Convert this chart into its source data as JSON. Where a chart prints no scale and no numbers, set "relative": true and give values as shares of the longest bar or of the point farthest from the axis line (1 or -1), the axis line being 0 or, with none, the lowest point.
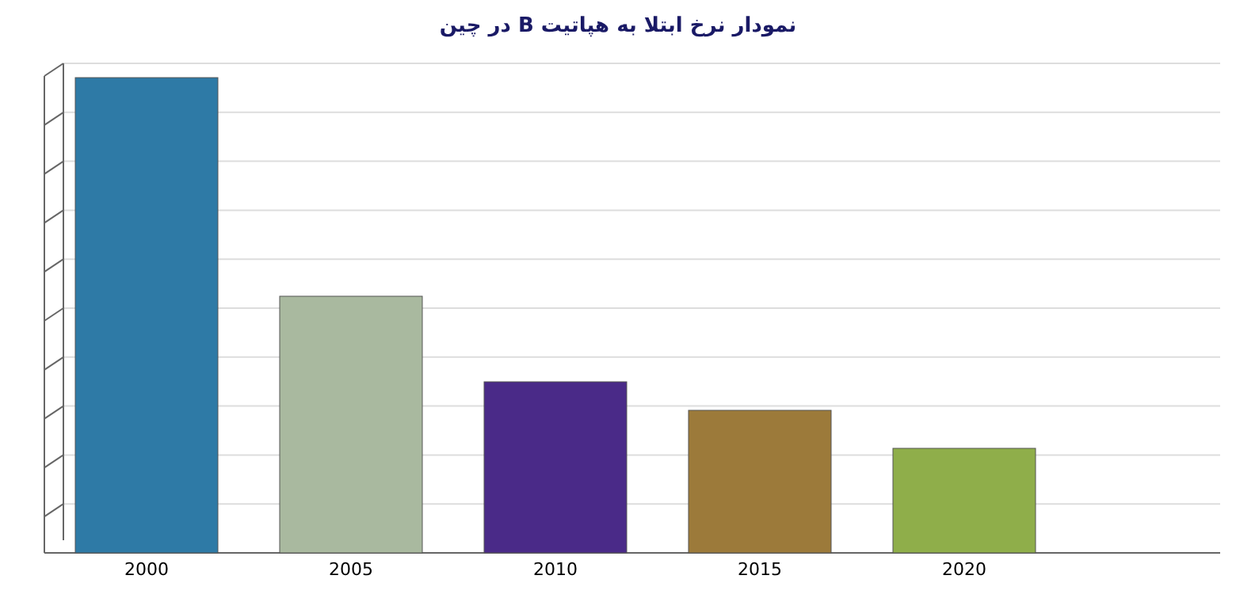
{
  "chart_data": {
    "type": "bar",
    "title": "نمودار نرخ ابتلا به هپاتیت B در چین",
    "categories": [
      "2000",
      "2005",
      "2010",
      "2015",
      "2020"
    ],
    "values": [
      1,
      0.54,
      0.36,
      0.3,
      0.22
    ],
    "colors": [
      "#2e7aa6",
      "#a9b99f",
      "#4a2a88",
      "#9c7a3a",
      "#8fae4a"
    ],
    "relative": true,
    "grid": "y"
  }
}
